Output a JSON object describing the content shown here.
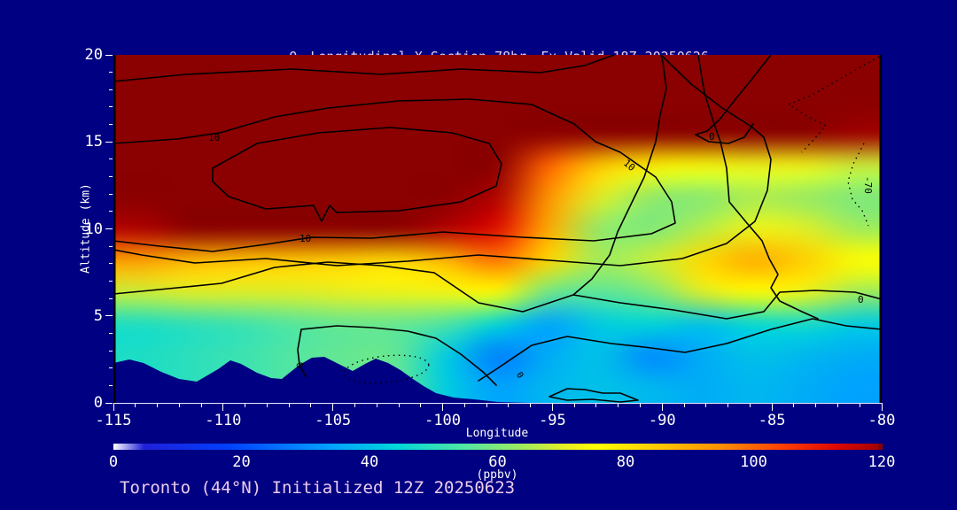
{
  "title": {
    "species_base": "O",
    "species_sub": "3",
    "text": " Longitudinal X-Section 78hr",
    "valid": "Fx Valid 18Z 20250626"
  },
  "footer": {
    "station_line": "Toronto (44°N) Initialized 12Z 20250623"
  },
  "colors": {
    "background": "#000082",
    "title_text": "#ecccec",
    "axis_text": "#ffffff",
    "contour_line": "#000000",
    "saturated_max": "#8b0000"
  },
  "axes": {
    "x": {
      "label": "Longitude",
      "min": -115,
      "max": -80,
      "ticks": [
        "-115",
        "-110",
        "-105",
        "-100",
        "-95",
        "-90",
        "-85",
        "-80"
      ]
    },
    "y": {
      "label": "Altitude (km)",
      "min": 0,
      "max": 20,
      "ticks": [
        "0",
        "5",
        "10",
        "15",
        "20"
      ]
    }
  },
  "colorbar": {
    "units": "(ppbv)",
    "min": 0,
    "max": 120,
    "ticks": [
      "0",
      "20",
      "40",
      "60",
      "80",
      "100",
      "120"
    ]
  },
  "contour_labels": {
    "l10_upper": "10",
    "l10_slant": "10",
    "l10_lower": "10",
    "l0_upper": "0",
    "l0_right": "0",
    "l0_small_a": "0",
    "l0_small_b": "0",
    "lm70": "-70"
  },
  "chart_data": {
    "type": "heatmap",
    "title": "O3 Longitudinal X-Section 78hr  Fx Valid 18Z 20250626",
    "subtitle": "Toronto (44°N) Initialized 12Z 20250623",
    "xlabel": "Longitude",
    "ylabel": "Altitude (km)",
    "xlim": [
      -115,
      -80
    ],
    "ylim": [
      0,
      20
    ],
    "colorbar_label": "(ppbv)",
    "colorbar_range": [
      0,
      120
    ],
    "contour_levels_solid": [
      0,
      10
    ],
    "contour_levels_dotted": [
      -70
    ],
    "x_longitudes": [
      -115,
      -112.5,
      -110,
      -107.5,
      -105,
      -102.5,
      -100,
      -97.5,
      -95,
      -92.5,
      -90,
      -87.5,
      -85,
      -82.5,
      -80
    ],
    "y_altitudes_km": [
      20,
      18,
      16,
      14,
      12,
      10,
      8,
      6,
      4,
      2,
      0
    ],
    "values_ppbv": [
      [
        125,
        125,
        125,
        125,
        125,
        125,
        125,
        125,
        125,
        125,
        125,
        125,
        125,
        125,
        125
      ],
      [
        125,
        125,
        125,
        125,
        125,
        125,
        125,
        125,
        125,
        125,
        125,
        125,
        125,
        125,
        125
      ],
      [
        125,
        125,
        125,
        125,
        125,
        125,
        125,
        125,
        125,
        125,
        125,
        125,
        125,
        125,
        120
      ],
      [
        125,
        125,
        125,
        125,
        125,
        125,
        125,
        122,
        100,
        85,
        78,
        74,
        72,
        72,
        68
      ],
      [
        125,
        125,
        125,
        125,
        125,
        125,
        124,
        118,
        94,
        70,
        62,
        61,
        65,
        63,
        60
      ],
      [
        118,
        122,
        125,
        125,
        125,
        124,
        118,
        112,
        90,
        62,
        60,
        66,
        72,
        70,
        64
      ],
      [
        92,
        88,
        86,
        85,
        84,
        82,
        88,
        98,
        82,
        64,
        68,
        82,
        90,
        84,
        76
      ],
      [
        68,
        70,
        70,
        70,
        71,
        72,
        73,
        76,
        58,
        56,
        60,
        70,
        76,
        72,
        64
      ],
      [
        48,
        50,
        52,
        55,
        57,
        57,
        54,
        44,
        34,
        42,
        44,
        40,
        45,
        47,
        42
      ],
      [
        null,
        null,
        null,
        null,
        null,
        null,
        42,
        28,
        36,
        40,
        30,
        36,
        40,
        38,
        36
      ],
      [
        null,
        null,
        null,
        null,
        null,
        null,
        null,
        34,
        38,
        40,
        38,
        36,
        38,
        36,
        34
      ]
    ],
    "null_values_mean": "terrain mask (background dark blue)"
  }
}
